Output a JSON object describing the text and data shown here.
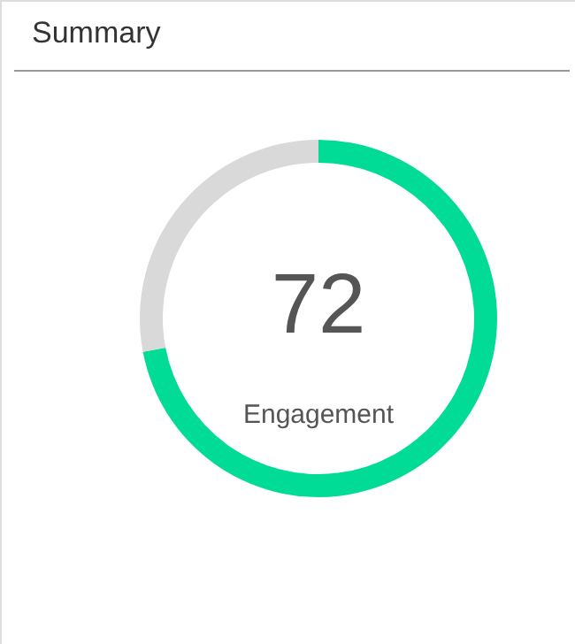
{
  "chart_data": {
    "type": "donut",
    "title": "Summary",
    "categories": [
      null,
      null
    ],
    "values": [
      72,
      28
    ],
    "colors": [
      "#00dc96",
      "#d9d9d9"
    ],
    "value_labels": [
      "72",
      null
    ],
    "annotations": [
      "Engagement"
    ]
  }
}
